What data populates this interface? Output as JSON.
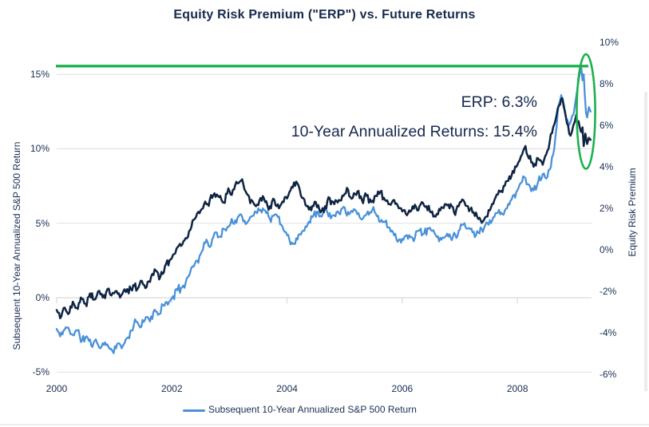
{
  "title": "Equity Risk Premium (\"ERP\") vs. Future Returns",
  "annotations": {
    "erp_label": "ERP: 6.3%",
    "returns_label": "10-Year Annualized Returns: 15.4%"
  },
  "left_axis": {
    "title": "Subsequent 10-Year Annualized S&P 500 Return",
    "ticks": [
      {
        "label": "15%",
        "value": 15
      },
      {
        "label": "10%",
        "value": 10
      },
      {
        "label": "5%",
        "value": 5
      },
      {
        "label": "0%",
        "value": 0
      },
      {
        "label": "-5%",
        "value": -5
      }
    ]
  },
  "right_axis": {
    "title": "Equity Risk Premium",
    "ticks": [
      {
        "label": "10%",
        "value": 10
      },
      {
        "label": "8%",
        "value": 8
      },
      {
        "label": "6%",
        "value": 6
      },
      {
        "label": "4%",
        "value": 4
      },
      {
        "label": "2%",
        "value": 2
      },
      {
        "label": "0%",
        "value": 0
      },
      {
        "label": "-2%",
        "value": -2
      },
      {
        "label": "-4%",
        "value": -4
      },
      {
        "label": "-6%",
        "value": -6
      }
    ]
  },
  "x_axis": {
    "ticks": [
      {
        "label": "2000",
        "value": 2000
      },
      {
        "label": "2002",
        "value": 2002
      },
      {
        "label": "2004",
        "value": 2004
      },
      {
        "label": "2006",
        "value": 2006
      },
      {
        "label": "2008",
        "value": 2008
      }
    ]
  },
  "legend": {
    "label": "Subsequent 10-Year Annualized S&P 500 Return",
    "color": "#4a91d9"
  },
  "colors": {
    "text": "#17294d",
    "blue_line": "#4a91d9",
    "navy_line": "#0f2443",
    "green": "#1db04f",
    "gridline": "#e4e4e4",
    "zero_axis": "#d9d9d9",
    "edge_strip": "#ececec"
  },
  "chart_data": {
    "type": "line",
    "title": "Equity Risk Premium (\"ERP\") vs. Future Returns",
    "x_range": [
      2000,
      2009.27
    ],
    "left_axis": {
      "label": "Subsequent 10-Year Annualized S&P 500 Return",
      "range": [
        -5,
        17.5
      ],
      "ticks": [
        15,
        10,
        5,
        0,
        -5
      ]
    },
    "right_axis": {
      "label": "Equity Risk Premium",
      "range": [
        -6,
        10
      ],
      "ticks": [
        10,
        8,
        6,
        4,
        2,
        0,
        -2,
        -4,
        -6
      ]
    },
    "grid": "horizontal-only",
    "legend_position": "bottom-center",
    "callouts": {
      "erp_latest_pct": 6.3,
      "ten_year_annualized_return_pct": 15.4
    },
    "series": [
      {
        "name": "Subsequent 10-Year Annualized S&P 500 Return",
        "axis": "left",
        "color": "#4a91d9",
        "stroke_width": 2.3,
        "points": [
          [
            2000.0,
            -2.1
          ],
          [
            2000.06,
            -2.6
          ],
          [
            2000.12,
            -2.2
          ],
          [
            2000.2,
            -2.0
          ],
          [
            2000.28,
            -2.5
          ],
          [
            2000.36,
            -2.2
          ],
          [
            2000.44,
            -2.9
          ],
          [
            2000.52,
            -2.6
          ],
          [
            2000.6,
            -3.2
          ],
          [
            2000.68,
            -2.8
          ],
          [
            2000.76,
            -3.4
          ],
          [
            2000.84,
            -3.0
          ],
          [
            2000.9,
            -3.3
          ],
          [
            2000.97,
            -3.6
          ],
          [
            2001.05,
            -3.1
          ],
          [
            2001.13,
            -3.4
          ],
          [
            2001.2,
            -2.8
          ],
          [
            2001.3,
            -2.2
          ],
          [
            2001.38,
            -1.6
          ],
          [
            2001.45,
            -2.0
          ],
          [
            2001.55,
            -1.3
          ],
          [
            2001.62,
            -1.6
          ],
          [
            2001.7,
            -0.8
          ],
          [
            2001.78,
            -1.1
          ],
          [
            2001.85,
            -0.5
          ],
          [
            2001.95,
            -0.3
          ],
          [
            2002.02,
            0.1
          ],
          [
            2002.1,
            0.5
          ],
          [
            2002.18,
            0.7
          ],
          [
            2002.28,
            1.4
          ],
          [
            2002.36,
            2.1
          ],
          [
            2002.44,
            2.5
          ],
          [
            2002.52,
            3.1
          ],
          [
            2002.6,
            3.9
          ],
          [
            2002.68,
            3.5
          ],
          [
            2002.76,
            4.4
          ],
          [
            2002.84,
            4.1
          ],
          [
            2002.92,
            4.6
          ],
          [
            2003.0,
            4.8
          ],
          [
            2003.1,
            5.2
          ],
          [
            2003.2,
            5.6
          ],
          [
            2003.3,
            5.0
          ],
          [
            2003.4,
            5.5
          ],
          [
            2003.5,
            6.0
          ],
          [
            2003.6,
            5.9
          ],
          [
            2003.7,
            5.3
          ],
          [
            2003.8,
            5.6
          ],
          [
            2003.9,
            4.9
          ],
          [
            2004.0,
            4.2
          ],
          [
            2004.1,
            3.6
          ],
          [
            2004.18,
            3.9
          ],
          [
            2004.28,
            4.5
          ],
          [
            2004.38,
            5.1
          ],
          [
            2004.48,
            5.8
          ],
          [
            2004.58,
            5.5
          ],
          [
            2004.68,
            5.9
          ],
          [
            2004.78,
            5.5
          ],
          [
            2004.88,
            5.8
          ],
          [
            2004.98,
            6.1
          ],
          [
            2005.08,
            5.6
          ],
          [
            2005.18,
            5.9
          ],
          [
            2005.28,
            5.3
          ],
          [
            2005.38,
            5.6
          ],
          [
            2005.48,
            5.9
          ],
          [
            2005.58,
            5.5
          ],
          [
            2005.68,
            5.1
          ],
          [
            2005.78,
            4.7
          ],
          [
            2005.88,
            4.3
          ],
          [
            2005.98,
            3.7
          ],
          [
            2006.08,
            4.2
          ],
          [
            2006.18,
            4.0
          ],
          [
            2006.28,
            4.5
          ],
          [
            2006.38,
            4.3
          ],
          [
            2006.48,
            4.7
          ],
          [
            2006.58,
            4.2
          ],
          [
            2006.68,
            3.9
          ],
          [
            2006.78,
            4.3
          ],
          [
            2006.88,
            4.1
          ],
          [
            2006.98,
            4.5
          ],
          [
            2007.08,
            5.0
          ],
          [
            2007.18,
            4.6
          ],
          [
            2007.28,
            4.2
          ],
          [
            2007.38,
            4.6
          ],
          [
            2007.48,
            5.0
          ],
          [
            2007.58,
            5.4
          ],
          [
            2007.68,
            5.9
          ],
          [
            2007.74,
            5.6
          ],
          [
            2007.82,
            6.0
          ],
          [
            2007.9,
            6.6
          ],
          [
            2008.0,
            7.2
          ],
          [
            2008.06,
            7.7
          ],
          [
            2008.12,
            8.1
          ],
          [
            2008.2,
            7.6
          ],
          [
            2008.28,
            7.2
          ],
          [
            2008.36,
            7.8
          ],
          [
            2008.44,
            8.3
          ],
          [
            2008.5,
            8.0
          ],
          [
            2008.56,
            8.6
          ],
          [
            2008.62,
            9.6
          ],
          [
            2008.68,
            11.5
          ],
          [
            2008.72,
            13.0
          ],
          [
            2008.76,
            13.6
          ],
          [
            2008.8,
            12.8
          ],
          [
            2008.85,
            12.0
          ],
          [
            2008.9,
            11.6
          ],
          [
            2008.95,
            12.2
          ],
          [
            2009.0,
            13.0
          ],
          [
            2009.04,
            14.0
          ],
          [
            2009.08,
            15.0
          ],
          [
            2009.11,
            15.4
          ],
          [
            2009.13,
            14.6
          ],
          [
            2009.15,
            15.0
          ],
          [
            2009.17,
            13.6
          ],
          [
            2009.19,
            12.4
          ],
          [
            2009.21,
            12.1
          ],
          [
            2009.24,
            12.8
          ],
          [
            2009.27,
            12.5
          ]
        ]
      },
      {
        "name": "Equity Risk Premium",
        "axis": "right",
        "color": "#0f2443",
        "stroke_width": 2.5,
        "points": [
          [
            2000.0,
            -2.9
          ],
          [
            2000.06,
            -3.3
          ],
          [
            2000.12,
            -2.8
          ],
          [
            2000.2,
            -3.1
          ],
          [
            2000.28,
            -2.5
          ],
          [
            2000.35,
            -2.8
          ],
          [
            2000.42,
            -2.3
          ],
          [
            2000.5,
            -2.6
          ],
          [
            2000.58,
            -2.1
          ],
          [
            2000.65,
            -2.4
          ],
          [
            2000.72,
            -2.0
          ],
          [
            2000.8,
            -2.3
          ],
          [
            2000.88,
            -1.9
          ],
          [
            2000.95,
            -2.2
          ],
          [
            2001.02,
            -2.0
          ],
          [
            2001.1,
            -2.3
          ],
          [
            2001.18,
            -1.9
          ],
          [
            2001.25,
            -2.1
          ],
          [
            2001.33,
            -1.7
          ],
          [
            2001.4,
            -1.9
          ],
          [
            2001.48,
            -1.5
          ],
          [
            2001.56,
            -1.8
          ],
          [
            2001.64,
            -1.3
          ],
          [
            2001.72,
            -1.0
          ],
          [
            2001.8,
            -1.3
          ],
          [
            2001.88,
            -0.8
          ],
          [
            2001.96,
            -0.5
          ],
          [
            2002.04,
            -0.2
          ],
          [
            2002.12,
            0.2
          ],
          [
            2002.2,
            0.4
          ],
          [
            2002.3,
            0.9
          ],
          [
            2002.4,
            1.5
          ],
          [
            2002.5,
            1.9
          ],
          [
            2002.6,
            2.2
          ],
          [
            2002.7,
            2.5
          ],
          [
            2002.8,
            2.6
          ],
          [
            2002.88,
            2.3
          ],
          [
            2002.96,
            2.7
          ],
          [
            2003.06,
            2.9
          ],
          [
            2003.14,
            3.2
          ],
          [
            2003.22,
            3.4
          ],
          [
            2003.3,
            2.7
          ],
          [
            2003.38,
            2.4
          ],
          [
            2003.46,
            2.1
          ],
          [
            2003.54,
            2.5
          ],
          [
            2003.62,
            2.3
          ],
          [
            2003.7,
            2.1
          ],
          [
            2003.78,
            2.4
          ],
          [
            2003.86,
            2.0
          ],
          [
            2003.94,
            2.3
          ],
          [
            2004.02,
            2.6
          ],
          [
            2004.1,
            3.0
          ],
          [
            2004.18,
            3.2
          ],
          [
            2004.26,
            2.5
          ],
          [
            2004.34,
            2.1
          ],
          [
            2004.42,
            1.9
          ],
          [
            2004.5,
            2.3
          ],
          [
            2004.58,
            1.8
          ],
          [
            2004.66,
            2.1
          ],
          [
            2004.74,
            2.5
          ],
          [
            2004.82,
            2.2
          ],
          [
            2004.9,
            2.4
          ],
          [
            2004.98,
            2.6
          ],
          [
            2005.06,
            2.9
          ],
          [
            2005.14,
            2.5
          ],
          [
            2005.22,
            2.8
          ],
          [
            2005.3,
            2.4
          ],
          [
            2005.38,
            2.6
          ],
          [
            2005.46,
            2.3
          ],
          [
            2005.54,
            2.6
          ],
          [
            2005.62,
            2.8
          ],
          [
            2005.7,
            2.4
          ],
          [
            2005.78,
            2.2
          ],
          [
            2005.86,
            2.4
          ],
          [
            2005.94,
            2.0
          ],
          [
            2006.02,
            1.9
          ],
          [
            2006.1,
            1.75
          ],
          [
            2006.18,
            2.1
          ],
          [
            2006.26,
            1.9
          ],
          [
            2006.34,
            2.3
          ],
          [
            2006.42,
            2.1
          ],
          [
            2006.5,
            1.8
          ],
          [
            2006.58,
            1.6
          ],
          [
            2006.66,
            1.9
          ],
          [
            2006.74,
            2.2
          ],
          [
            2006.82,
            2.0
          ],
          [
            2006.9,
            1.8
          ],
          [
            2006.98,
            2.1
          ],
          [
            2007.06,
            2.4
          ],
          [
            2007.14,
            2.1
          ],
          [
            2007.22,
            1.8
          ],
          [
            2007.3,
            1.6
          ],
          [
            2007.38,
            1.3
          ],
          [
            2007.46,
            1.6
          ],
          [
            2007.52,
            1.9
          ],
          [
            2007.6,
            2.4
          ],
          [
            2007.7,
            2.8
          ],
          [
            2007.8,
            3.3
          ],
          [
            2007.9,
            3.6
          ],
          [
            2008.0,
            4.1
          ],
          [
            2008.06,
            4.5
          ],
          [
            2008.12,
            4.9
          ],
          [
            2008.2,
            4.4
          ],
          [
            2008.28,
            4.0
          ],
          [
            2008.36,
            4.4
          ],
          [
            2008.44,
            4.1
          ],
          [
            2008.5,
            4.6
          ],
          [
            2008.56,
            5.2
          ],
          [
            2008.62,
            5.9
          ],
          [
            2008.68,
            6.5
          ],
          [
            2008.74,
            7.0
          ],
          [
            2008.78,
            7.3
          ],
          [
            2008.82,
            6.7
          ],
          [
            2008.86,
            6.1
          ],
          [
            2008.92,
            5.5
          ],
          [
            2008.97,
            6.0
          ],
          [
            2009.02,
            6.5
          ],
          [
            2009.06,
            6.2
          ],
          [
            2009.1,
            5.7
          ],
          [
            2009.13,
            5.9
          ],
          [
            2009.15,
            5.0
          ],
          [
            2009.18,
            5.6
          ],
          [
            2009.21,
            5.1
          ],
          [
            2009.24,
            5.4
          ],
          [
            2009.27,
            5.3
          ]
        ]
      }
    ],
    "highlights": {
      "hline_left_value": 15.55,
      "hline_color": "#1db04f",
      "ellipse_x_year": 2009.19,
      "ellipse_center_left_value": 12.5,
      "ellipse_rx_years": 0.16,
      "ellipse_ry_left_units": 3.85
    },
    "render_hints": {
      "noise_seed": 11,
      "noise_amp_left": 0.21,
      "noise_amp_right": 0.155,
      "noise_step_years": 0.02
    }
  }
}
